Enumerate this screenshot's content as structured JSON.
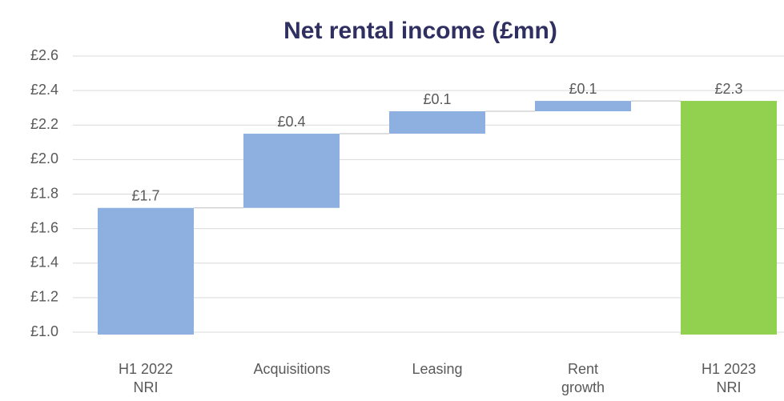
{
  "chart_data": {
    "type": "waterfall",
    "title": "Net rental income (£mn)",
    "categories": [
      "H1 2022 NRI",
      "Acquisitions",
      "Leasing",
      "Rent growth",
      "H1 2023 NRI"
    ],
    "values": [
      1.72,
      0.43,
      0.13,
      0.06,
      2.34
    ],
    "value_labels": [
      "£1.7",
      "£0.4",
      "£0.1",
      "£0.1",
      "£2.3"
    ],
    "total": [
      true,
      false,
      false,
      false,
      true
    ],
    "colors": [
      "#8db0e0",
      "#8db0e0",
      "#8db0e0",
      "#8db0e0",
      "#92d050"
    ],
    "ylim": [
      1.0,
      2.6
    ],
    "yticks": [
      {
        "value": 1.0,
        "label": "£1.0"
      },
      {
        "value": 1.2,
        "label": "£1.2"
      },
      {
        "value": 1.4,
        "label": "£1.4"
      },
      {
        "value": 1.6,
        "label": "£1.6"
      },
      {
        "value": 1.8,
        "label": "£1.8"
      },
      {
        "value": 2.0,
        "label": "£2.0"
      },
      {
        "value": 2.2,
        "label": "£2.2"
      },
      {
        "value": 2.4,
        "label": "£2.4"
      },
      {
        "value": 2.6,
        "label": "£2.6"
      }
    ],
    "grid": true
  }
}
